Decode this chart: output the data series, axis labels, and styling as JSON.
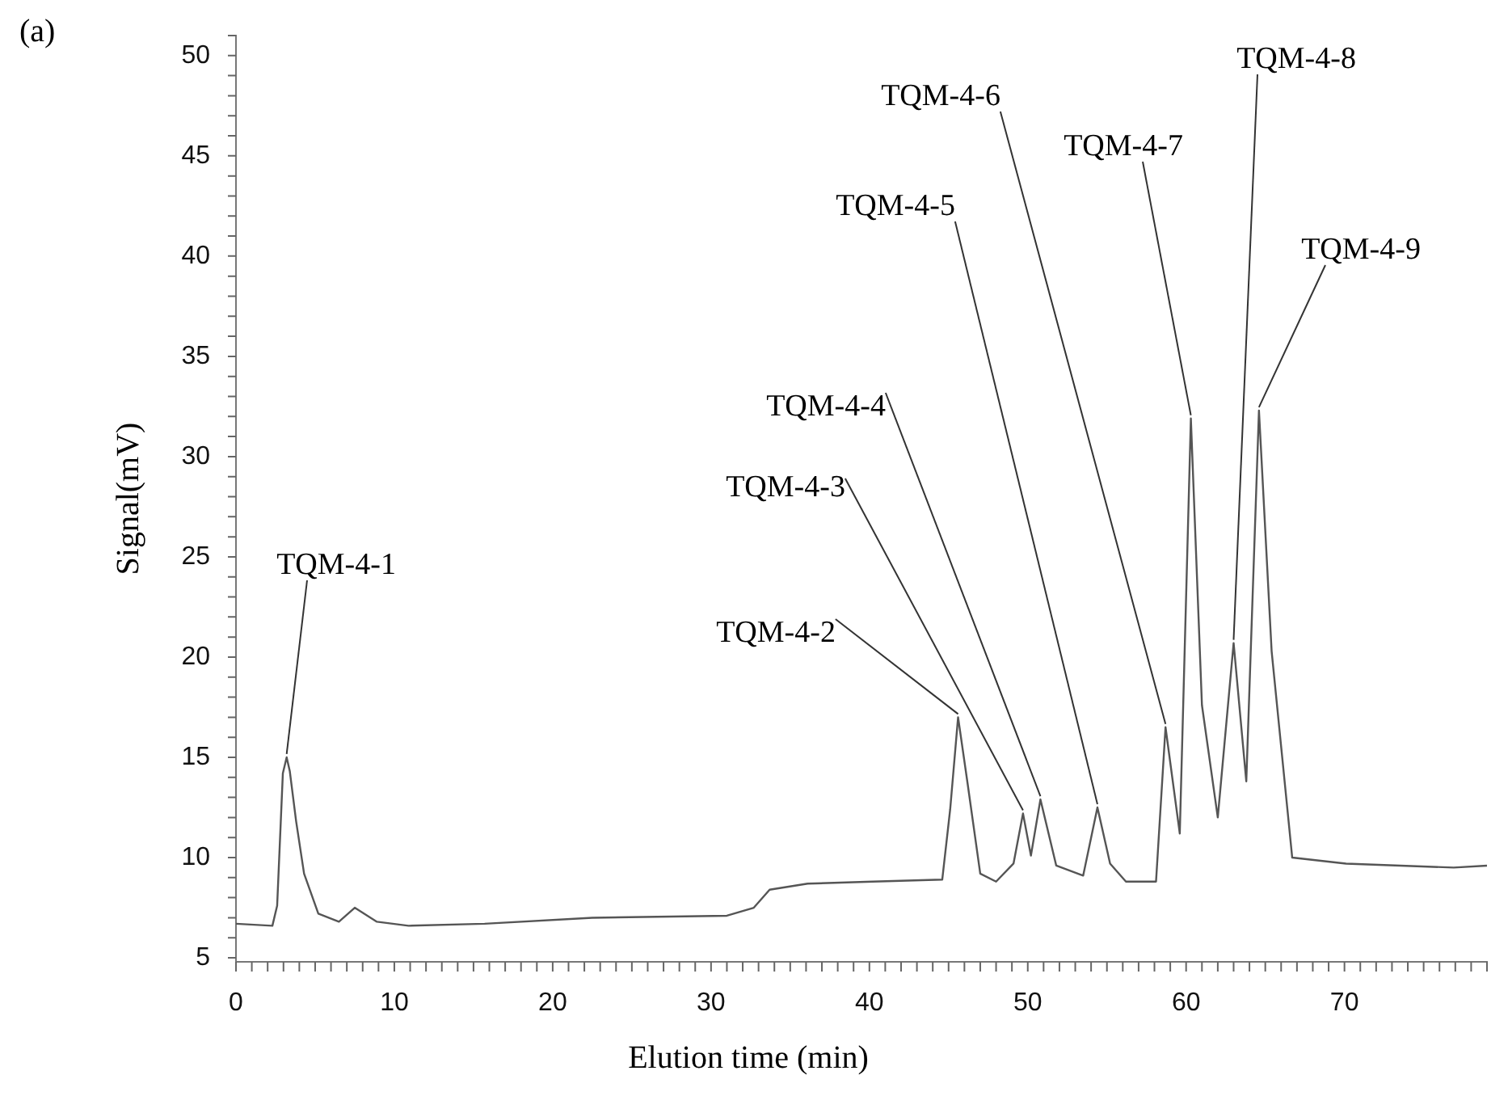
{
  "chart_data": {
    "type": "line",
    "xlabel": "Elution time (min)",
    "ylabel": "Signal(mV)",
    "x": [
      0,
      2.3,
      2.6,
      2.96,
      3.2,
      3.4,
      3.8,
      4.3,
      5.2,
      6.5,
      7.5,
      8.9,
      10.9,
      15.7,
      22.5,
      31,
      32.7,
      33.7,
      36.1,
      40.2,
      44.6,
      45.1,
      45.6,
      46.2,
      47,
      48,
      49.1,
      49.7,
      50.2,
      50.8,
      51.8,
      53.5,
      54.4,
      55.2,
      56.2,
      58.1,
      58.7,
      59.6,
      60.3,
      61,
      62,
      63,
      63.8,
      64.6,
      65.4,
      66.7,
      70.1,
      76.9,
      79
    ],
    "series": [
      {
        "color": "#555555",
        "values": [
          6.7,
          6.6,
          7.6,
          14.2,
          15,
          14.3,
          11.8,
          9.2,
          7.2,
          6.8,
          7.5,
          6.8,
          6.6,
          6.7,
          7,
          7.1,
          7.5,
          8.4,
          8.7,
          8.8,
          8.9,
          12.4,
          17,
          13.7,
          9.2,
          8.8,
          9.7,
          12.2,
          10.1,
          12.9,
          9.6,
          9.1,
          12.5,
          9.7,
          8.8,
          8.8,
          16.5,
          11.2,
          31.9,
          17.6,
          12,
          20.7,
          13.8,
          32.3,
          20.3,
          10,
          9.7,
          9.5,
          9.6
        ]
      }
    ],
    "xlim": [
      0,
      79
    ],
    "xticks": [
      0,
      10,
      20,
      30,
      40,
      50,
      60,
      70
    ],
    "ylim": [
      4.8,
      51
    ],
    "yticks": [
      5,
      10,
      15,
      20,
      25,
      30,
      35,
      40,
      45,
      50
    ],
    "grid": false,
    "legend": false,
    "marker": "none",
    "line_style": "solid",
    "annotations": [
      "(a)",
      {
        "text": "TQM-4-1",
        "x": 3.2,
        "y": 15
      },
      {
        "text": "TQM-4-2",
        "x": 45.6,
        "y": 17
      },
      {
        "text": "TQM-4-3",
        "x": 49.7,
        "y": 12.2
      },
      {
        "text": "TQM-4-4",
        "x": 50.8,
        "y": 12.9
      },
      {
        "text": "TQM-4-5",
        "x": 54.4,
        "y": 12.5
      },
      {
        "text": "TQM-4-6",
        "x": 58.7,
        "y": 16.5
      },
      {
        "text": "TQM-4-7",
        "x": 60.3,
        "y": 31.9
      },
      {
        "text": "TQM-4-8",
        "x": 63,
        "y": 20.7
      },
      {
        "text": "TQM-4-9",
        "x": 64.6,
        "y": 32.3
      }
    ]
  }
}
